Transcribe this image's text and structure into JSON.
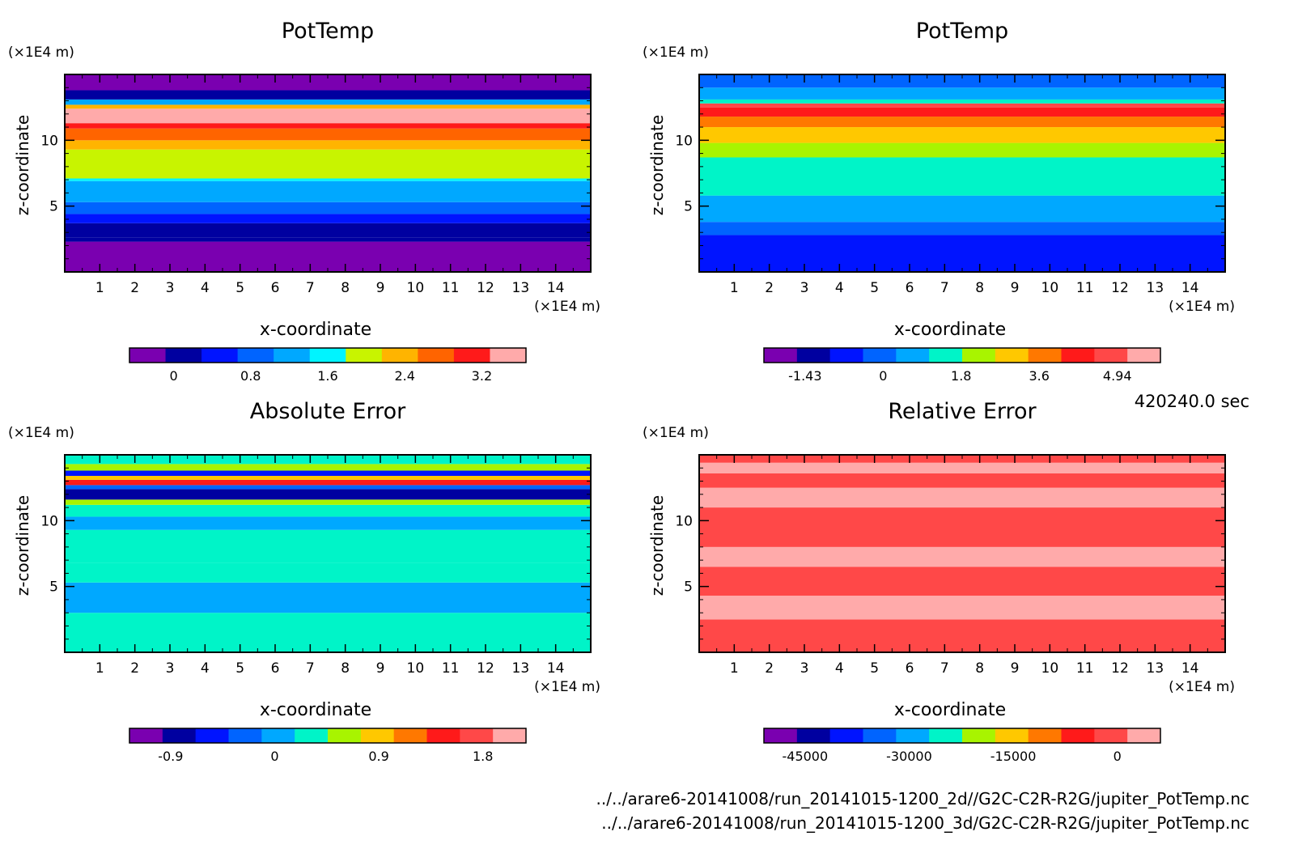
{
  "time_label": "420240.0 sec",
  "footer": {
    "path_2d": "../../arare6-20141008/run_20141015-1200_2d//G2C-C2R-R2G/jupiter_PotTemp.nc",
    "path_3d": "../../arare6-20141008/run_20141015-1200_3d/G2C-C2R-R2G/jupiter_PotTemp.nc"
  },
  "chart_data": [
    {
      "type": "heatmap",
      "title": "PotTemp",
      "xlabel": "x-coordinate",
      "ylabel": "z-coordinate",
      "x_unit": "(×1E4 m)",
      "y_unit": "(×1E4 m)",
      "xlim": [
        0,
        15
      ],
      "ylim": [
        0,
        15
      ],
      "x_ticks": [
        "1",
        "2",
        "3",
        "4",
        "5",
        "6",
        "7",
        "8",
        "9",
        "10",
        "11",
        "12",
        "13",
        "14"
      ],
      "y_ticks": [
        "5",
        "10"
      ],
      "colors": [
        "#7a00b0",
        "#0000a0",
        "#0014ff",
        "#0064ff",
        "#00a8ff",
        "#00f4ff",
        "#c8f400",
        "#ffb400",
        "#ff6400",
        "#ff1a1a",
        "#ffaaaa"
      ],
      "colorbar_ticks": [
        "0",
        "0.8",
        "1.6",
        "2.4",
        "3.2"
      ],
      "bands": [
        {
          "z": [
            0,
            2.3
          ],
          "level": 0
        },
        {
          "z": [
            2.3,
            2.6
          ],
          "level": 1
        },
        {
          "z": [
            2.6,
            3.7
          ],
          "level": 1
        },
        {
          "z": [
            3.7,
            4.4
          ],
          "level": 2
        },
        {
          "z": [
            4.4,
            5.3
          ],
          "level": 3
        },
        {
          "z": [
            5.3,
            6.9
          ],
          "level": 4
        },
        {
          "z": [
            6.9,
            7.1
          ],
          "level": 5
        },
        {
          "z": [
            7.1,
            9.3
          ],
          "level": 6
        },
        {
          "z": [
            9.3,
            10.0
          ],
          "level": 7
        },
        {
          "z": [
            10.0,
            10.9
          ],
          "level": 8
        },
        {
          "z": [
            10.9,
            11.3
          ],
          "level": 9
        },
        {
          "z": [
            11.3,
            12.4
          ],
          "level": 10
        },
        {
          "z": [
            12.4,
            12.7
          ],
          "level": 7
        },
        {
          "z": [
            12.7,
            13.1
          ],
          "level": 4
        },
        {
          "z": [
            13.1,
            13.8
          ],
          "level": 1
        },
        {
          "z": [
            13.8,
            15.0
          ],
          "level": 0
        }
      ]
    },
    {
      "type": "heatmap",
      "title": "PotTemp",
      "xlabel": "x-coordinate",
      "ylabel": "z-coordinate",
      "x_unit": "(×1E4 m)",
      "y_unit": "(×1E4 m)",
      "xlim": [
        0,
        15
      ],
      "ylim": [
        0,
        15
      ],
      "x_ticks": [
        "1",
        "2",
        "3",
        "4",
        "5",
        "6",
        "7",
        "8",
        "9",
        "10",
        "11",
        "12",
        "13",
        "14"
      ],
      "y_ticks": [
        "5",
        "10"
      ],
      "colors": [
        "#7a00b0",
        "#0000a0",
        "#0014ff",
        "#0064ff",
        "#00a8ff",
        "#00f4c8",
        "#a8f400",
        "#ffc800",
        "#ff7800",
        "#ff1a1a",
        "#ff4848",
        "#ffaaaa"
      ],
      "colorbar_ticks": [
        "-1.43",
        "0",
        "1.8",
        "3.6",
        "4.94"
      ],
      "bands": [
        {
          "z": [
            0,
            2.8
          ],
          "level": 2
        },
        {
          "z": [
            2.8,
            3.8
          ],
          "level": 3
        },
        {
          "z": [
            3.8,
            5.8
          ],
          "level": 4
        },
        {
          "z": [
            5.8,
            8.7
          ],
          "level": 5
        },
        {
          "z": [
            8.7,
            9.8
          ],
          "level": 6
        },
        {
          "z": [
            9.8,
            11.0
          ],
          "level": 7
        },
        {
          "z": [
            11.0,
            11.8
          ],
          "level": 8
        },
        {
          "z": [
            11.8,
            12.5
          ],
          "level": 9
        },
        {
          "z": [
            12.5,
            12.8
          ],
          "level": 10
        },
        {
          "z": [
            12.8,
            13.1
          ],
          "level": 5
        },
        {
          "z": [
            13.1,
            14.0
          ],
          "level": 4
        },
        {
          "z": [
            14.0,
            15.0
          ],
          "level": 3
        }
      ]
    },
    {
      "type": "heatmap",
      "title": "Absolute Error",
      "xlabel": "x-coordinate",
      "ylabel": "z-coordinate",
      "x_unit": "(×1E4 m)",
      "y_unit": "(×1E4 m)",
      "xlim": [
        0,
        15
      ],
      "ylim": [
        0,
        15
      ],
      "x_ticks": [
        "1",
        "2",
        "3",
        "4",
        "5",
        "6",
        "7",
        "8",
        "9",
        "10",
        "11",
        "12",
        "13",
        "14"
      ],
      "y_ticks": [
        "5",
        "10"
      ],
      "colors": [
        "#7a00b0",
        "#0000a0",
        "#0014ff",
        "#0064ff",
        "#00a8ff",
        "#00f4c8",
        "#a8f400",
        "#ffc800",
        "#ff7800",
        "#ff1a1a",
        "#ff4848",
        "#ffaaaa"
      ],
      "colorbar_ticks": [
        "-0.9",
        "0",
        "0.9",
        "1.8"
      ],
      "bands": [
        {
          "z": [
            0,
            3.0
          ],
          "level": 5
        },
        {
          "z": [
            3.0,
            5.3
          ],
          "level": 4
        },
        {
          "z": [
            5.3,
            6.8
          ],
          "level": 5
        },
        {
          "z": [
            6.8,
            9.3
          ],
          "level": 5
        },
        {
          "z": [
            9.3,
            10.3
          ],
          "level": 4
        },
        {
          "z": [
            10.3,
            11.2
          ],
          "level": 5
        },
        {
          "z": [
            11.2,
            11.6
          ],
          "level": 6
        },
        {
          "z": [
            11.6,
            12.4
          ],
          "level": 1
        },
        {
          "z": [
            12.4,
            12.7
          ],
          "level": 3
        },
        {
          "z": [
            12.7,
            13.1
          ],
          "level": 9
        },
        {
          "z": [
            13.1,
            13.4
          ],
          "level": 7
        },
        {
          "z": [
            13.4,
            13.8
          ],
          "level": 2
        },
        {
          "z": [
            13.8,
            14.3
          ],
          "level": 6
        },
        {
          "z": [
            14.3,
            15.0
          ],
          "level": 5
        }
      ]
    },
    {
      "type": "heatmap",
      "title": "Relative Error",
      "xlabel": "x-coordinate",
      "ylabel": "z-coordinate",
      "x_unit": "(×1E4 m)",
      "y_unit": "(×1E4 m)",
      "xlim": [
        0,
        15
      ],
      "ylim": [
        0,
        15
      ],
      "x_ticks": [
        "1",
        "2",
        "3",
        "4",
        "5",
        "6",
        "7",
        "8",
        "9",
        "10",
        "11",
        "12",
        "13",
        "14"
      ],
      "y_ticks": [
        "5",
        "10"
      ],
      "colors": [
        "#7a00b0",
        "#0000a0",
        "#0014ff",
        "#0064ff",
        "#00a8ff",
        "#00f4c8",
        "#a8f400",
        "#ffc800",
        "#ff7800",
        "#ff1a1a",
        "#ff4848",
        "#ffaaaa"
      ],
      "colorbar_ticks": [
        "-45000",
        "-30000",
        "-15000",
        "0"
      ],
      "bands": [
        {
          "z": [
            0,
            2.5
          ],
          "level": 10
        },
        {
          "z": [
            2.5,
            4.3
          ],
          "level": 11
        },
        {
          "z": [
            4.3,
            6.5
          ],
          "level": 10
        },
        {
          "z": [
            6.5,
            8.0
          ],
          "level": 11
        },
        {
          "z": [
            8.0,
            11.0
          ],
          "level": 10
        },
        {
          "z": [
            11.0,
            12.5
          ],
          "level": 11
        },
        {
          "z": [
            12.5,
            13.6
          ],
          "level": 10
        },
        {
          "z": [
            13.6,
            14.4
          ],
          "level": 11
        },
        {
          "z": [
            14.4,
            15.0
          ],
          "level": 10
        }
      ]
    }
  ]
}
